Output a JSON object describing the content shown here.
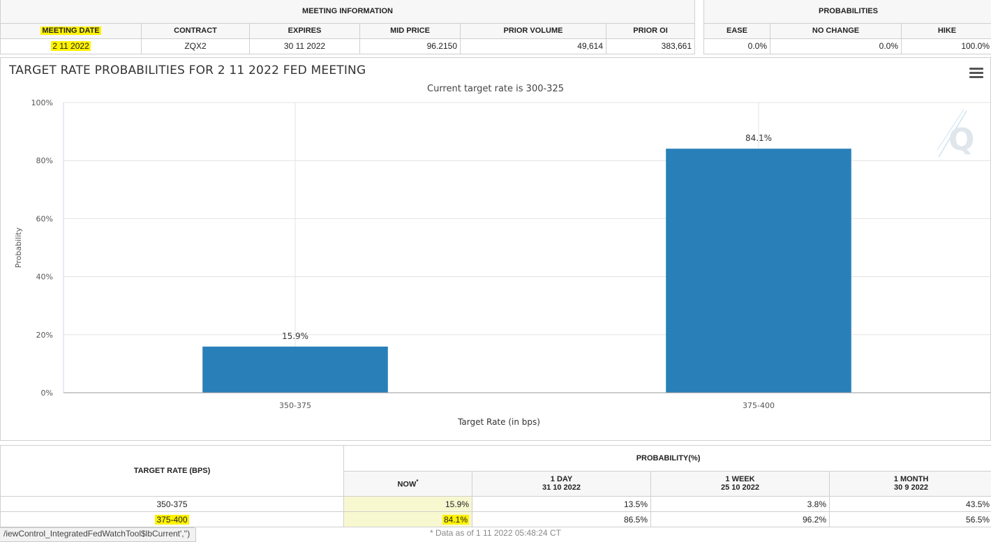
{
  "meeting": {
    "section_title": "MEETING INFORMATION",
    "headers": [
      "MEETING DATE",
      "CONTRACT",
      "EXPIRES",
      "MID PRICE",
      "PRIOR VOLUME",
      "PRIOR OI"
    ],
    "row": [
      "2 11 2022",
      "ZQX2",
      "30 11 2022",
      "96.2150",
      "49,614",
      "383,661"
    ]
  },
  "probabilities": {
    "section_title": "PROBABILITIES",
    "headers": [
      "EASE",
      "NO CHANGE",
      "HIKE"
    ],
    "row": [
      "0.0%",
      "0.0%",
      "100.0%"
    ]
  },
  "chart": {
    "title": "TARGET RATE PROBABILITIES FOR 2 11 2022 FED MEETING",
    "subtitle": "Current target rate is 300-325",
    "menu_icon": "hamburger-menu-icon",
    "watermark": "Q"
  },
  "chart_data": {
    "type": "bar",
    "categories": [
      "350-375",
      "375-400"
    ],
    "values": [
      15.9,
      84.1
    ],
    "value_labels": [
      "15.9%",
      "84.1%"
    ],
    "xlabel": "Target Rate (in bps)",
    "ylabel": "Probability",
    "ylim": [
      0,
      100
    ],
    "yticks": [
      "0%",
      "20%",
      "40%",
      "60%",
      "80%",
      "100%"
    ],
    "bar_color": "#2980b9",
    "grid": true
  },
  "bottom_table": {
    "target_header": "TARGET RATE (BPS)",
    "prob_header": "PROBABILITY(%)",
    "now_header": "NOW",
    "now_marker": "*",
    "col_1day": {
      "label": "1 DAY",
      "date": "31 10 2022"
    },
    "col_1week": {
      "label": "1 WEEK",
      "date": "25 10 2022"
    },
    "col_1month": {
      "label": "1 MONTH",
      "date": "30 9 2022"
    },
    "rows": [
      {
        "rate": "350-375",
        "now": "15.9%",
        "day": "13.5%",
        "week": "3.8%",
        "month": "43.5%"
      },
      {
        "rate": "375-400",
        "now": "84.1%",
        "day": "86.5%",
        "week": "96.2%",
        "month": "56.5%"
      }
    ]
  },
  "footer_note": "* Data as of 1 11 2022 05:48:24 CT",
  "status_tip": "/iewControl_IntegratedFedWatchTool$lbCurrent','')"
}
